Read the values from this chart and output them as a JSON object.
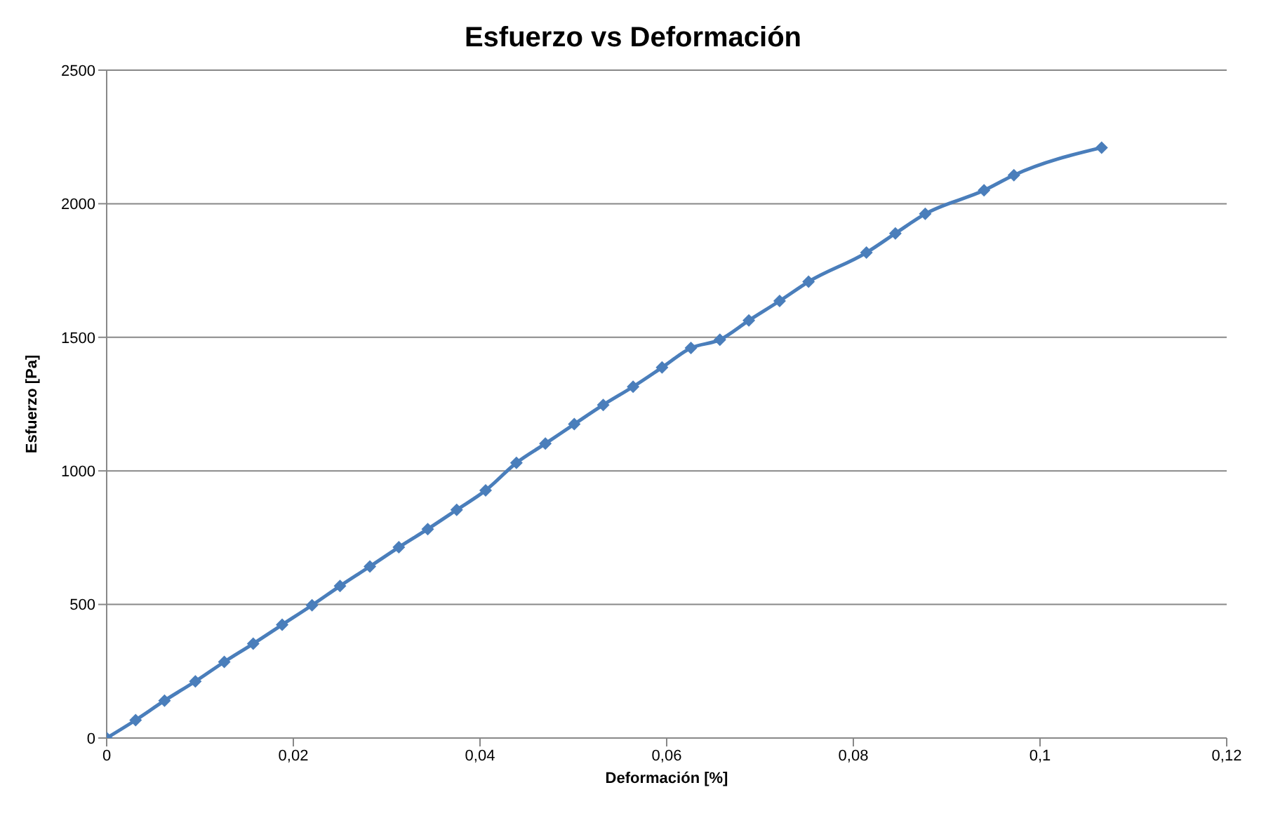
{
  "chart_data": {
    "type": "line",
    "title": "Esfuerzo vs Deformación",
    "xlabel": "Deformación [%]",
    "ylabel": "Esfuerzo [Pa]",
    "x": [
      0,
      0.0031,
      0.0062,
      0.0095,
      0.0126,
      0.0157,
      0.0188,
      0.022,
      0.025,
      0.0282,
      0.0313,
      0.0344,
      0.0375,
      0.0406,
      0.0439,
      0.047,
      0.0501,
      0.0532,
      0.0564,
      0.0595,
      0.0626,
      0.0657,
      0.0688,
      0.0721,
      0.0752,
      0.0814,
      0.0845,
      0.0877,
      0.094,
      0.0972,
      0.1066
    ],
    "series": [
      {
        "color": "#4a7ebb",
        "values": [
          0,
          67,
          140,
          212,
          285,
          353,
          424,
          497,
          569,
          642,
          714,
          782,
          854,
          927,
          1030,
          1102,
          1175,
          1247,
          1315,
          1387,
          1460,
          1491,
          1563,
          1636,
          1708,
          1817,
          1889,
          1962,
          2050,
          2107,
          2210
        ]
      }
    ],
    "xlim": [
      0,
      0.12
    ],
    "xticks": [
      0,
      {
        "value": 0.02,
        "label": "0,02"
      },
      {
        "value": 0.04,
        "label": "0,04"
      },
      {
        "value": 0.06,
        "label": "0,06"
      },
      {
        "value": 0.08,
        "label": "0,08"
      },
      {
        "value": 0.1,
        "label": "0,1"
      },
      {
        "value": 0.12,
        "label": "0,12"
      }
    ],
    "ylim": [
      0,
      2500
    ],
    "yticks": [
      0,
      500,
      1000,
      1500,
      2000,
      2500
    ],
    "grid": "y",
    "marker": "diamond",
    "line_style": "solid",
    "legend": false
  }
}
